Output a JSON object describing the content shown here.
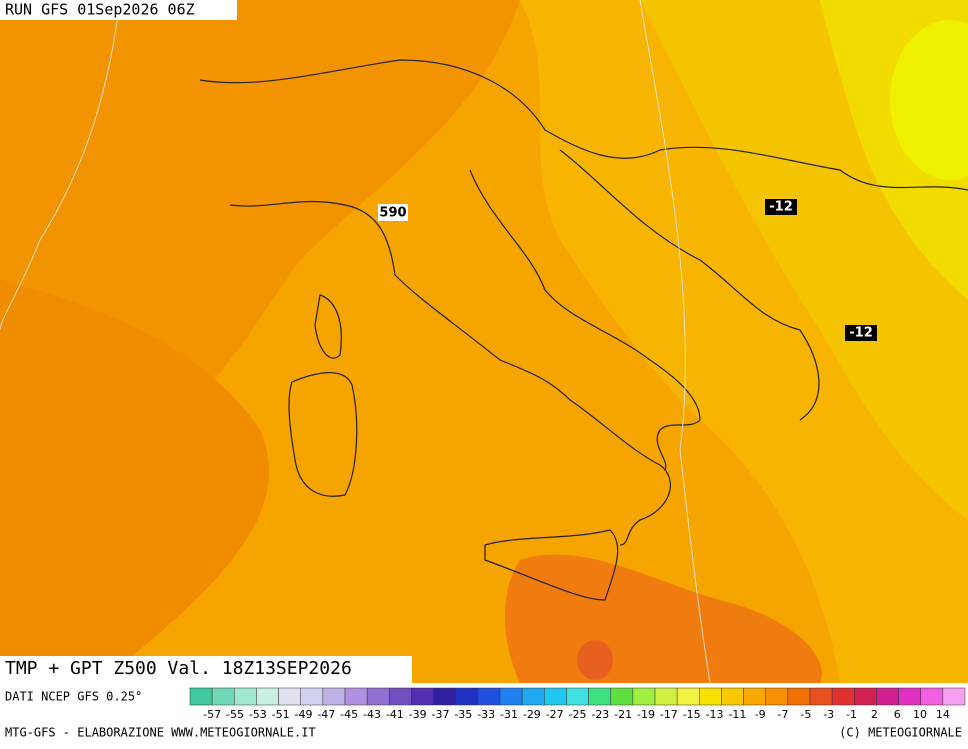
{
  "header": {
    "run": "RUN GFS 01Sep2026 06Z"
  },
  "map_labels": {
    "contour_590": "590",
    "isotherm_a": "-12",
    "isotherm_b": "-12"
  },
  "title": "TMP + GPT Z500 Val. 18Z13SEP2026",
  "source": "DATI NCEP GFS 0.25°",
  "legend": {
    "labels": [
      -57,
      -55,
      -53,
      -51,
      -49,
      -47,
      -45,
      -43,
      -41,
      -39,
      -37,
      -35,
      -33,
      -31,
      -29,
      -27,
      -25,
      -23,
      -21,
      -19,
      -17,
      -15,
      -13,
      -11,
      -9,
      -7,
      -5,
      -3,
      -1,
      2,
      6,
      10,
      14
    ],
    "colors": [
      "#40c8a0",
      "#70d8b8",
      "#a0e8d0",
      "#c8f0e0",
      "#e0e0f0",
      "#d0d0f0",
      "#c0b0e8",
      "#b090e0",
      "#9070d0",
      "#7050c0",
      "#5030b0",
      "#3020a0",
      "#2030c0",
      "#2050e0",
      "#2080f0",
      "#20a8f0",
      "#20c8f0",
      "#40e0e0",
      "#40e080",
      "#60e040",
      "#a0f040",
      "#d0f040",
      "#f0f040",
      "#f8e000",
      "#f8c800",
      "#f8a800",
      "#f89000",
      "#f07000",
      "#e85020",
      "#e03030",
      "#d02050",
      "#d02090",
      "#e030c0",
      "#f060e0",
      "#f8a0f0"
    ]
  },
  "footer": {
    "left": "MTG-GFS - ELABORAZIONE WWW.METEOGIORNALE.IT",
    "right": "(C) METEOGIORNALE"
  }
}
